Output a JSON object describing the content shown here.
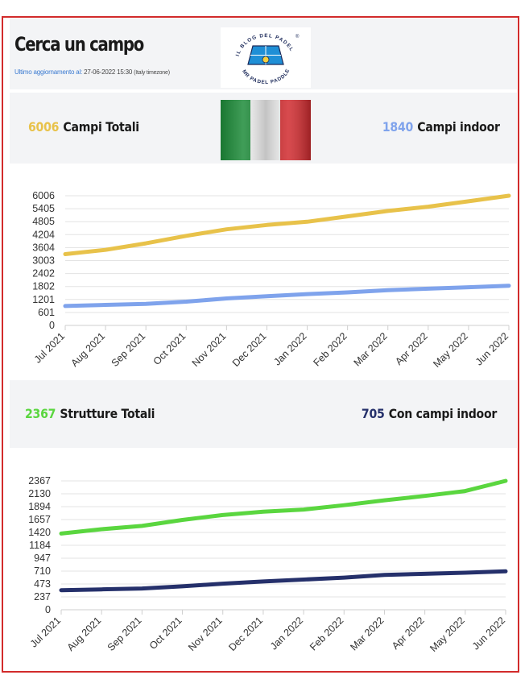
{
  "header": {
    "title": "Cerca un campo",
    "updated_label": "Ultimo aggiornamento al:",
    "updated_value": "27-06-2022 15:30",
    "timezone": "(Italy timezone)",
    "logo": {
      "top_text": "IL BLOG DEL PADEL",
      "bottom_text": "MR PADEL PADDLE",
      "registered": "®"
    }
  },
  "stats_courts": {
    "total_value": "6006",
    "total_label": "Campi Totali",
    "indoor_value": "1840",
    "indoor_label": "Campi indoor",
    "total_color": "#e8c24a",
    "indoor_color": "#7fa3ec"
  },
  "stats_structures": {
    "total_value": "2367",
    "total_label": "Strutture Totali",
    "indoor_value": "705",
    "indoor_label": "Con campi indoor",
    "total_color": "#5ad63f",
    "indoor_color": "#25306b"
  },
  "chart_data": [
    {
      "type": "line",
      "categories": [
        "Jul 2021",
        "Aug 2021",
        "Sep 2021",
        "Oct 2021",
        "Nov 2021",
        "Dec 2021",
        "Jan 2022",
        "Feb 2022",
        "Mar 2022",
        "Apr 2022",
        "May 2022",
        "Jun 2022"
      ],
      "yticks": [
        0,
        601,
        1201,
        1802,
        2402,
        3003,
        3604,
        4204,
        4805,
        5405,
        6006
      ],
      "ylim": [
        0,
        6006
      ],
      "grid": true,
      "series": [
        {
          "color": "#e8c24a",
          "values": [
            3300,
            3500,
            3800,
            4150,
            4450,
            4650,
            4800,
            5050,
            5300,
            5500,
            5750,
            6006
          ]
        },
        {
          "color": "#7fa3ec",
          "values": [
            900,
            950,
            1000,
            1100,
            1250,
            1350,
            1450,
            1530,
            1630,
            1700,
            1770,
            1840
          ]
        }
      ]
    },
    {
      "type": "line",
      "categories": [
        "Jul 2021",
        "Aug 2021",
        "Sep 2021",
        "Oct 2021",
        "Nov 2021",
        "Dec 2021",
        "Jan 2022",
        "Feb 2022",
        "Mar 2022",
        "Apr 2022",
        "May 2022",
        "Jun 2022"
      ],
      "yticks": [
        0,
        237,
        473,
        710,
        947,
        1184,
        1420,
        1657,
        1894,
        2130,
        2367
      ],
      "ylim": [
        0,
        2367
      ],
      "grid": true,
      "series": [
        {
          "color": "#5ad63f",
          "values": [
            1400,
            1480,
            1540,
            1650,
            1740,
            1800,
            1840,
            1920,
            2010,
            2090,
            2180,
            2367
          ]
        },
        {
          "color": "#25306b",
          "values": [
            360,
            375,
            390,
            430,
            480,
            520,
            555,
            590,
            640,
            660,
            680,
            705
          ]
        }
      ]
    }
  ]
}
